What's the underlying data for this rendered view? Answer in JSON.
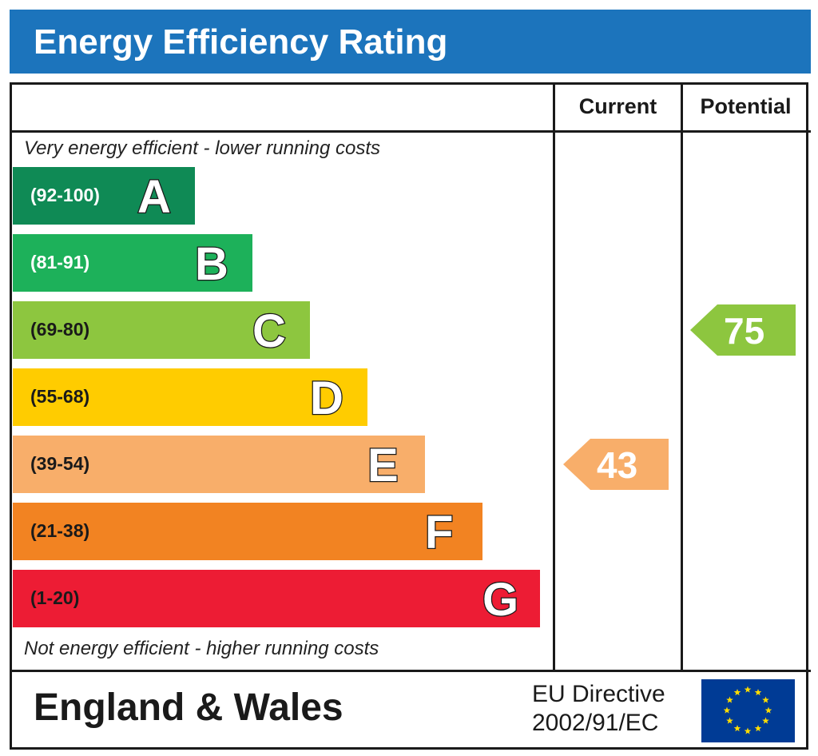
{
  "header": {
    "title": "Energy Efficiency Rating"
  },
  "columns": {
    "current": "Current",
    "potential": "Potential"
  },
  "notes": {
    "top": "Very energy efficient - lower running costs",
    "bottom": "Not energy efficient - higher running costs"
  },
  "footer": {
    "region": "England & Wales",
    "directive_line1": "EU Directive",
    "directive_line2": "2002/91/EC"
  },
  "chart_data": {
    "type": "bar",
    "title": "Energy Efficiency Rating",
    "categories": [
      "A",
      "B",
      "C",
      "D",
      "E",
      "F",
      "G"
    ],
    "ranges": [
      "(92-100)",
      "(81-91)",
      "(69-80)",
      "(55-68)",
      "(39-54)",
      "(21-38)",
      "(1-20)"
    ],
    "colors": [
      "#0f8a55",
      "#1db15a",
      "#8dc63f",
      "#ffcc00",
      "#f8ae6a",
      "#f28322",
      "#ed1c34"
    ],
    "current": {
      "value": 43,
      "band": "E",
      "color": "#f8ae6a"
    },
    "potential": {
      "value": 75,
      "band": "C",
      "color": "#8dc63f"
    }
  }
}
